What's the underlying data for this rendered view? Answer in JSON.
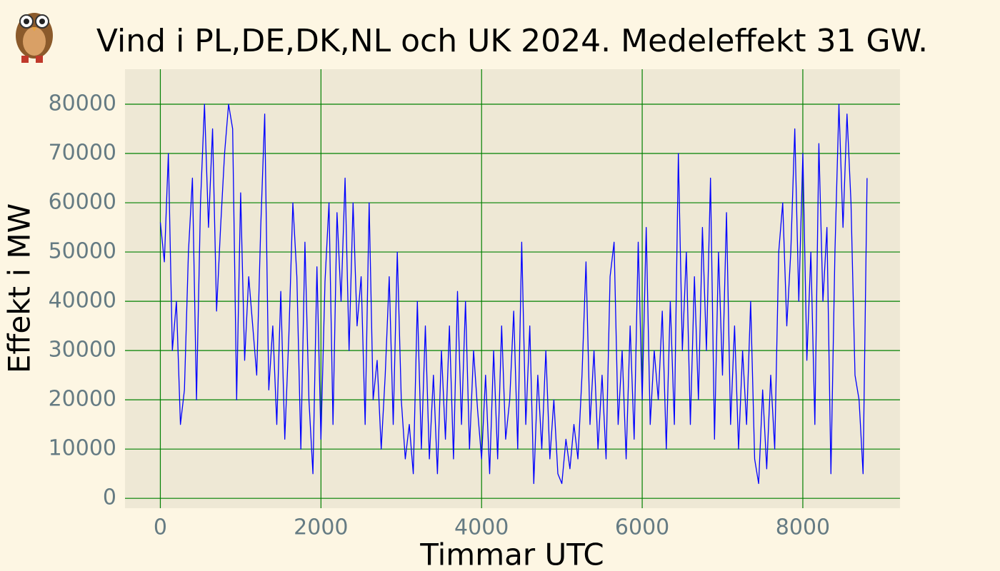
{
  "chart_data": {
    "type": "line",
    "title": "Vind i PL,DE,DK,NL och UK 2024. Medeleffekt 31 GW.",
    "xlabel": "Timmar UTC",
    "ylabel": "Effekt i MW",
    "xlim": [
      -440,
      9210
    ],
    "ylim": [
      -2000,
      87100
    ],
    "xticks": [
      0,
      2000,
      4000,
      6000,
      8000
    ],
    "yticks": [
      0,
      10000,
      20000,
      30000,
      40000,
      50000,
      60000,
      70000,
      80000
    ],
    "grid": true,
    "grid_color": "#008000",
    "x": [
      0,
      50,
      100,
      150,
      200,
      250,
      300,
      350,
      400,
      450,
      500,
      550,
      600,
      650,
      700,
      750,
      800,
      850,
      900,
      950,
      1000,
      1050,
      1100,
      1150,
      1200,
      1250,
      1300,
      1350,
      1400,
      1450,
      1500,
      1550,
      1600,
      1650,
      1700,
      1750,
      1800,
      1850,
      1900,
      1950,
      2000,
      2050,
      2100,
      2150,
      2200,
      2250,
      2300,
      2350,
      2400,
      2450,
      2500,
      2550,
      2600,
      2650,
      2700,
      2750,
      2800,
      2850,
      2900,
      2950,
      3000,
      3050,
      3100,
      3150,
      3200,
      3250,
      3300,
      3350,
      3400,
      3450,
      3500,
      3550,
      3600,
      3650,
      3700,
      3750,
      3800,
      3850,
      3900,
      3950,
      4000,
      4050,
      4100,
      4150,
      4200,
      4250,
      4300,
      4350,
      4400,
      4450,
      4500,
      4550,
      4600,
      4650,
      4700,
      4750,
      4800,
      4850,
      4900,
      4950,
      5000,
      5050,
      5100,
      5150,
      5200,
      5250,
      5300,
      5350,
      5400,
      5450,
      5500,
      5550,
      5600,
      5650,
      5700,
      5750,
      5800,
      5850,
      5900,
      5950,
      6000,
      6050,
      6100,
      6150,
      6200,
      6250,
      6300,
      6350,
      6400,
      6450,
      6500,
      6550,
      6600,
      6650,
      6700,
      6750,
      6800,
      6850,
      6900,
      6950,
      7000,
      7050,
      7100,
      7150,
      7200,
      7250,
      7300,
      7350,
      7400,
      7450,
      7500,
      7550,
      7600,
      7650,
      7700,
      7750,
      7800,
      7850,
      7900,
      7950,
      8000,
      8050,
      8100,
      8150,
      8200,
      8250,
      8300,
      8350,
      8400,
      8450,
      8500,
      8550,
      8600,
      8650,
      8700,
      8750,
      8800
    ],
    "series": [
      {
        "name": "Vind",
        "color": "#0000ff",
        "values": [
          56000,
          48000,
          70000,
          30000,
          40000,
          15000,
          22000,
          50000,
          65000,
          20000,
          60000,
          80000,
          55000,
          75000,
          38000,
          55000,
          70000,
          80000,
          75000,
          20000,
          62000,
          28000,
          45000,
          35000,
          25000,
          55000,
          78000,
          22000,
          35000,
          15000,
          42000,
          12000,
          33000,
          60000,
          45000,
          10000,
          52000,
          20000,
          5000,
          47000,
          12000,
          44000,
          60000,
          15000,
          58000,
          40000,
          65000,
          30000,
          60000,
          35000,
          45000,
          15000,
          60000,
          20000,
          28000,
          10000,
          25000,
          45000,
          15000,
          50000,
          20000,
          8000,
          15000,
          5000,
          40000,
          10000,
          35000,
          8000,
          25000,
          5000,
          30000,
          12000,
          35000,
          8000,
          42000,
          15000,
          40000,
          10000,
          30000,
          18000,
          8000,
          25000,
          5000,
          30000,
          8000,
          35000,
          12000,
          20000,
          38000,
          10000,
          52000,
          15000,
          35000,
          3000,
          25000,
          10000,
          30000,
          8000,
          20000,
          5000,
          3000,
          12000,
          6000,
          15000,
          8000,
          25000,
          48000,
          15000,
          30000,
          10000,
          25000,
          8000,
          45000,
          52000,
          15000,
          30000,
          8000,
          35000,
          12000,
          52000,
          20000,
          55000,
          15000,
          30000,
          20000,
          38000,
          10000,
          40000,
          15000,
          70000,
          30000,
          50000,
          15000,
          45000,
          20000,
          55000,
          30000,
          65000,
          12000,
          50000,
          25000,
          58000,
          15000,
          35000,
          10000,
          30000,
          15000,
          40000,
          8000,
          3000,
          22000,
          6000,
          25000,
          10000,
          50000,
          60000,
          35000,
          50000,
          75000,
          40000,
          70000,
          28000,
          50000,
          15000,
          72000,
          40000,
          55000,
          5000,
          50000,
          80000,
          55000,
          78000,
          60000,
          25000,
          20000,
          5000,
          65000
        ]
      }
    ]
  }
}
